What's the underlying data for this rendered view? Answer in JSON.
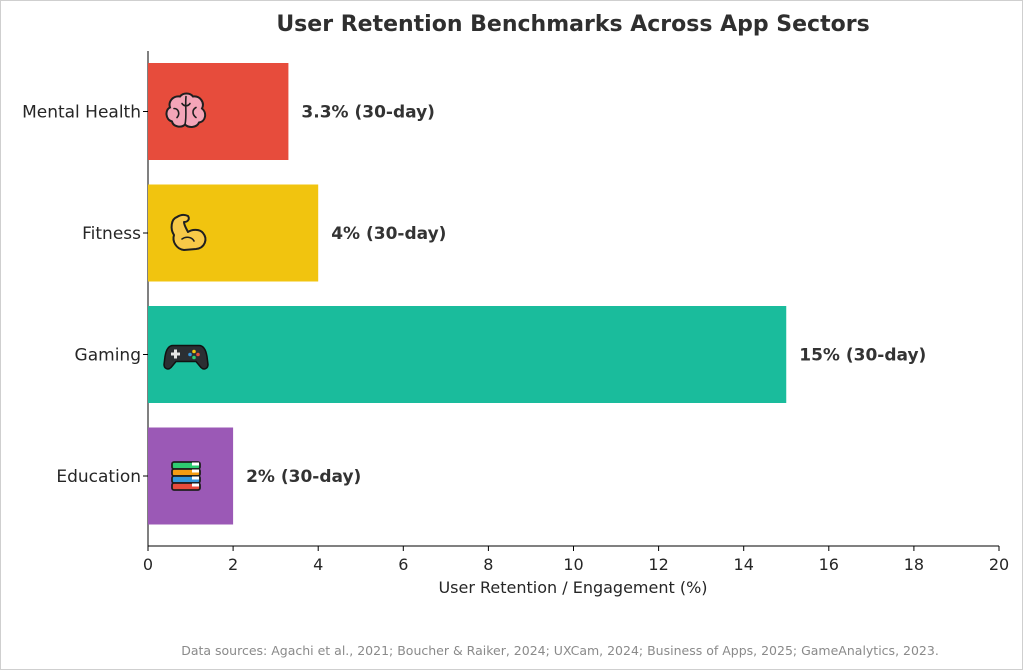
{
  "chart_data": {
    "type": "bar",
    "orientation": "horizontal",
    "title": "User Retention Benchmarks Across App Sectors",
    "xlabel": "User Retention / Engagement (%)",
    "ylabel": "",
    "xlim": [
      0,
      20
    ],
    "xticks": [
      0,
      2,
      4,
      6,
      8,
      10,
      12,
      14,
      16,
      18,
      20
    ],
    "grid": false,
    "categories": [
      "Mental Health",
      "Fitness",
      "Gaming",
      "Education"
    ],
    "values": [
      3.3,
      4,
      15,
      2
    ],
    "data_labels": [
      "3.3% (30-day)",
      "4% (30-day)",
      "15% (30-day)",
      "2% (30-day)"
    ],
    "colors": [
      "#E74C3C",
      "#F1C40F",
      "#1ABC9C",
      "#9B59B6"
    ],
    "icons": [
      "brain-icon",
      "flexed-biceps-icon",
      "game-controller-icon",
      "books-icon"
    ]
  },
  "footer": {
    "source": "Data sources: Agachi et al., 2021; Boucher & Raiker, 2024; UXCam, 2024; Business of Apps, 2025; GameAnalytics, 2023."
  }
}
